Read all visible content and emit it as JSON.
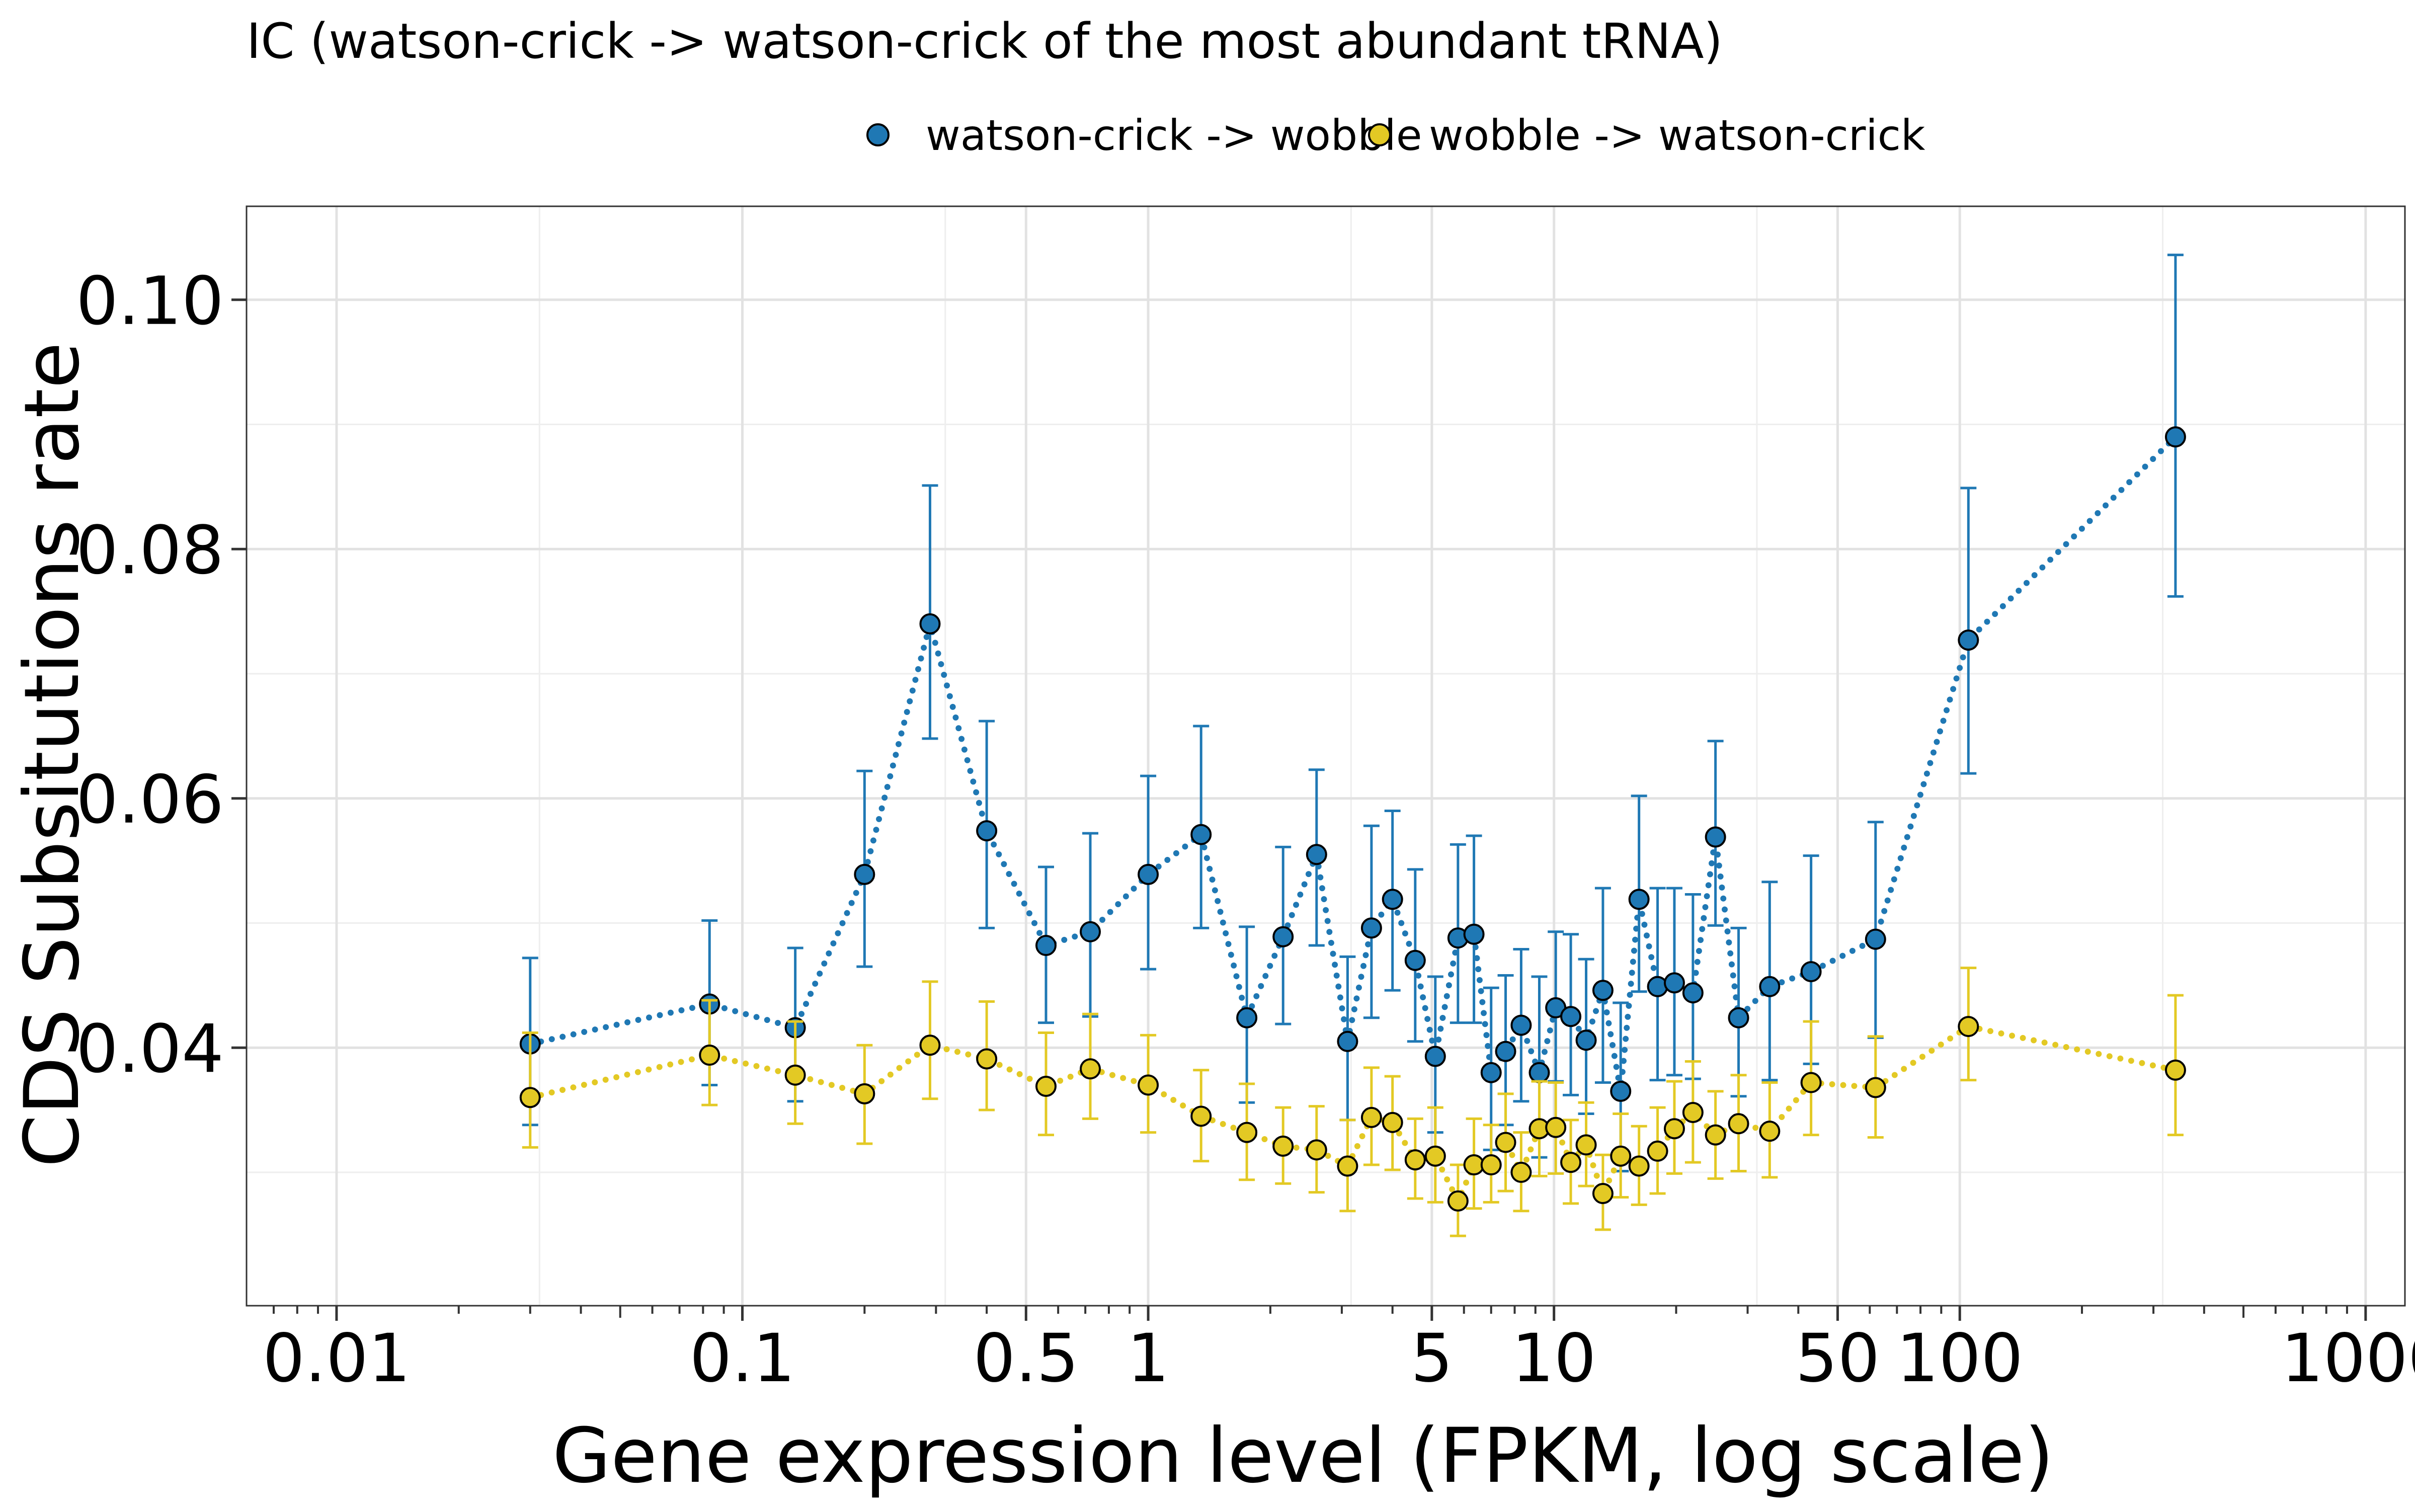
{
  "chart_data": {
    "type": "scatter",
    "title": "IC (watson-crick -> watson-crick of the most abundant tRNA)",
    "xlabel": "Gene expression level (FPKM, log scale)",
    "ylabel": "CDS Subsitutions rate",
    "x_scale": "log10",
    "xlim": [
      0.006,
      1250
    ],
    "ylim": [
      0.0193,
      0.1075
    ],
    "x_ticks": [
      0.01,
      0.1,
      0.5,
      1,
      5,
      10,
      50,
      100,
      1000
    ],
    "x_tick_labels": [
      "0.01",
      "0.1",
      "0.5",
      "1",
      "5",
      "10",
      "50",
      "100",
      "1000"
    ],
    "y_ticks": [
      0.04,
      0.06,
      0.08,
      0.1
    ],
    "y_tick_labels": [
      "0.04",
      "0.06",
      "0.08",
      "0.10"
    ],
    "grid": true,
    "legend_position": "top",
    "series": [
      {
        "name": "watson-crick -> wobble",
        "color": "#1f78b4",
        "points": [
          {
            "x": 0.03,
            "y": 0.0403,
            "lo": 0.0338,
            "hi": 0.0472
          },
          {
            "x": 0.083,
            "y": 0.0435,
            "lo": 0.037,
            "hi": 0.0502
          },
          {
            "x": 0.135,
            "y": 0.0416,
            "lo": 0.0357,
            "hi": 0.048
          },
          {
            "x": 0.2,
            "y": 0.0539,
            "lo": 0.0465,
            "hi": 0.0622
          },
          {
            "x": 0.29,
            "y": 0.074,
            "lo": 0.0648,
            "hi": 0.0851
          },
          {
            "x": 0.4,
            "y": 0.0574,
            "lo": 0.0496,
            "hi": 0.0662
          },
          {
            "x": 0.56,
            "y": 0.0482,
            "lo": 0.042,
            "hi": 0.0545
          },
          {
            "x": 0.72,
            "y": 0.0493,
            "lo": 0.0425,
            "hi": 0.0572
          },
          {
            "x": 1.0,
            "y": 0.0539,
            "lo": 0.0463,
            "hi": 0.0618
          },
          {
            "x": 1.35,
            "y": 0.0571,
            "lo": 0.0496,
            "hi": 0.0658
          },
          {
            "x": 1.75,
            "y": 0.0424,
            "lo": 0.0356,
            "hi": 0.0497
          },
          {
            "x": 2.15,
            "y": 0.0489,
            "lo": 0.0419,
            "hi": 0.0561
          },
          {
            "x": 2.6,
            "y": 0.0555,
            "lo": 0.0482,
            "hi": 0.0623
          },
          {
            "x": 3.1,
            "y": 0.0405,
            "lo": 0.0342,
            "hi": 0.0473
          },
          {
            "x": 3.55,
            "y": 0.0496,
            "lo": 0.0424,
            "hi": 0.0578
          },
          {
            "x": 4.0,
            "y": 0.0519,
            "lo": 0.0446,
            "hi": 0.059
          },
          {
            "x": 4.55,
            "y": 0.047,
            "lo": 0.0405,
            "hi": 0.0543
          },
          {
            "x": 5.1,
            "y": 0.0393,
            "lo": 0.0332,
            "hi": 0.0457
          },
          {
            "x": 5.8,
            "y": 0.0488,
            "lo": 0.042,
            "hi": 0.0563
          },
          {
            "x": 6.35,
            "y": 0.0491,
            "lo": 0.042,
            "hi": 0.057
          },
          {
            "x": 7.0,
            "y": 0.038,
            "lo": 0.0318,
            "hi": 0.0448
          },
          {
            "x": 7.6,
            "y": 0.0397,
            "lo": 0.0338,
            "hi": 0.0458
          },
          {
            "x": 8.3,
            "y": 0.0418,
            "lo": 0.0357,
            "hi": 0.0479
          },
          {
            "x": 9.2,
            "y": 0.038,
            "lo": 0.0312,
            "hi": 0.0457
          },
          {
            "x": 10.1,
            "y": 0.0432,
            "lo": 0.0373,
            "hi": 0.0493
          },
          {
            "x": 11.0,
            "y": 0.0425,
            "lo": 0.0362,
            "hi": 0.0491
          },
          {
            "x": 12.0,
            "y": 0.0406,
            "lo": 0.0347,
            "hi": 0.0471
          },
          {
            "x": 13.2,
            "y": 0.0446,
            "lo": 0.0372,
            "hi": 0.0528
          },
          {
            "x": 14.6,
            "y": 0.0365,
            "lo": 0.0301,
            "hi": 0.0436
          },
          {
            "x": 16.2,
            "y": 0.0519,
            "lo": 0.0445,
            "hi": 0.0602
          },
          {
            "x": 18.0,
            "y": 0.0449,
            "lo": 0.0374,
            "hi": 0.0528
          },
          {
            "x": 19.8,
            "y": 0.0452,
            "lo": 0.0378,
            "hi": 0.0528
          },
          {
            "x": 22.0,
            "y": 0.0444,
            "lo": 0.0375,
            "hi": 0.0523
          },
          {
            "x": 25.0,
            "y": 0.0569,
            "lo": 0.0498,
            "hi": 0.0646
          },
          {
            "x": 28.5,
            "y": 0.0424,
            "lo": 0.0361,
            "hi": 0.0496
          },
          {
            "x": 34.0,
            "y": 0.0449,
            "lo": 0.0374,
            "hi": 0.0533
          },
          {
            "x": 43.0,
            "y": 0.0461,
            "lo": 0.0387,
            "hi": 0.0554
          },
          {
            "x": 62.0,
            "y": 0.0487,
            "lo": 0.0408,
            "hi": 0.0581
          },
          {
            "x": 105.0,
            "y": 0.0727,
            "lo": 0.062,
            "hi": 0.0849
          },
          {
            "x": 340.0,
            "y": 0.089,
            "lo": 0.0762,
            "hi": 0.1036
          }
        ]
      },
      {
        "name": "wobble -> watson-crick",
        "color": "#e3c924",
        "points": [
          {
            "x": 0.03,
            "y": 0.036,
            "lo": 0.032,
            "hi": 0.0412
          },
          {
            "x": 0.083,
            "y": 0.0394,
            "lo": 0.0354,
            "hi": 0.0438
          },
          {
            "x": 0.135,
            "y": 0.0378,
            "lo": 0.0339,
            "hi": 0.0421
          },
          {
            "x": 0.2,
            "y": 0.0363,
            "lo": 0.0323,
            "hi": 0.0402
          },
          {
            "x": 0.29,
            "y": 0.0402,
            "lo": 0.0359,
            "hi": 0.0453
          },
          {
            "x": 0.4,
            "y": 0.0391,
            "lo": 0.035,
            "hi": 0.0437
          },
          {
            "x": 0.56,
            "y": 0.0369,
            "lo": 0.033,
            "hi": 0.0412
          },
          {
            "x": 0.72,
            "y": 0.0383,
            "lo": 0.0343,
            "hi": 0.0427
          },
          {
            "x": 1.0,
            "y": 0.037,
            "lo": 0.0332,
            "hi": 0.041
          },
          {
            "x": 1.35,
            "y": 0.0345,
            "lo": 0.0309,
            "hi": 0.0382
          },
          {
            "x": 1.75,
            "y": 0.0332,
            "lo": 0.0294,
            "hi": 0.0371
          },
          {
            "x": 2.15,
            "y": 0.0321,
            "lo": 0.0291,
            "hi": 0.0352
          },
          {
            "x": 2.6,
            "y": 0.0318,
            "lo": 0.0284,
            "hi": 0.0353
          },
          {
            "x": 3.1,
            "y": 0.0305,
            "lo": 0.0269,
            "hi": 0.0342
          },
          {
            "x": 3.55,
            "y": 0.0344,
            "lo": 0.0306,
            "hi": 0.0384
          },
          {
            "x": 4.0,
            "y": 0.034,
            "lo": 0.0302,
            "hi": 0.0377
          },
          {
            "x": 4.55,
            "y": 0.031,
            "lo": 0.0279,
            "hi": 0.0343
          },
          {
            "x": 5.1,
            "y": 0.0313,
            "lo": 0.0276,
            "hi": 0.0352
          },
          {
            "x": 5.8,
            "y": 0.0277,
            "lo": 0.0249,
            "hi": 0.0306
          },
          {
            "x": 6.35,
            "y": 0.0306,
            "lo": 0.0271,
            "hi": 0.0343
          },
          {
            "x": 7.0,
            "y": 0.0306,
            "lo": 0.0276,
            "hi": 0.0338
          },
          {
            "x": 7.6,
            "y": 0.0324,
            "lo": 0.0285,
            "hi": 0.0363
          },
          {
            "x": 8.3,
            "y": 0.03,
            "lo": 0.0269,
            "hi": 0.0332
          },
          {
            "x": 9.2,
            "y": 0.0335,
            "lo": 0.0297,
            "hi": 0.0373
          },
          {
            "x": 10.1,
            "y": 0.0336,
            "lo": 0.0299,
            "hi": 0.0372
          },
          {
            "x": 11.0,
            "y": 0.0308,
            "lo": 0.0275,
            "hi": 0.0342
          },
          {
            "x": 12.0,
            "y": 0.0322,
            "lo": 0.0289,
            "hi": 0.0356
          },
          {
            "x": 13.2,
            "y": 0.0283,
            "lo": 0.0254,
            "hi": 0.0314
          },
          {
            "x": 14.6,
            "y": 0.0313,
            "lo": 0.028,
            "hi": 0.0347
          },
          {
            "x": 16.2,
            "y": 0.0305,
            "lo": 0.0274,
            "hi": 0.0337
          },
          {
            "x": 18.0,
            "y": 0.0317,
            "lo": 0.0283,
            "hi": 0.0352
          },
          {
            "x": 19.8,
            "y": 0.0335,
            "lo": 0.0299,
            "hi": 0.0373
          },
          {
            "x": 22.0,
            "y": 0.0348,
            "lo": 0.0308,
            "hi": 0.0389
          },
          {
            "x": 25.0,
            "y": 0.033,
            "lo": 0.0295,
            "hi": 0.0365
          },
          {
            "x": 28.5,
            "y": 0.0339,
            "lo": 0.0301,
            "hi": 0.0378
          },
          {
            "x": 34.0,
            "y": 0.0333,
            "lo": 0.0296,
            "hi": 0.0372
          },
          {
            "x": 43.0,
            "y": 0.0372,
            "lo": 0.033,
            "hi": 0.0421
          },
          {
            "x": 62.0,
            "y": 0.0368,
            "lo": 0.0328,
            "hi": 0.0409
          },
          {
            "x": 105.0,
            "y": 0.0417,
            "lo": 0.0374,
            "hi": 0.0464
          },
          {
            "x": 340.0,
            "y": 0.0382,
            "lo": 0.033,
            "hi": 0.0442
          }
        ]
      }
    ]
  }
}
